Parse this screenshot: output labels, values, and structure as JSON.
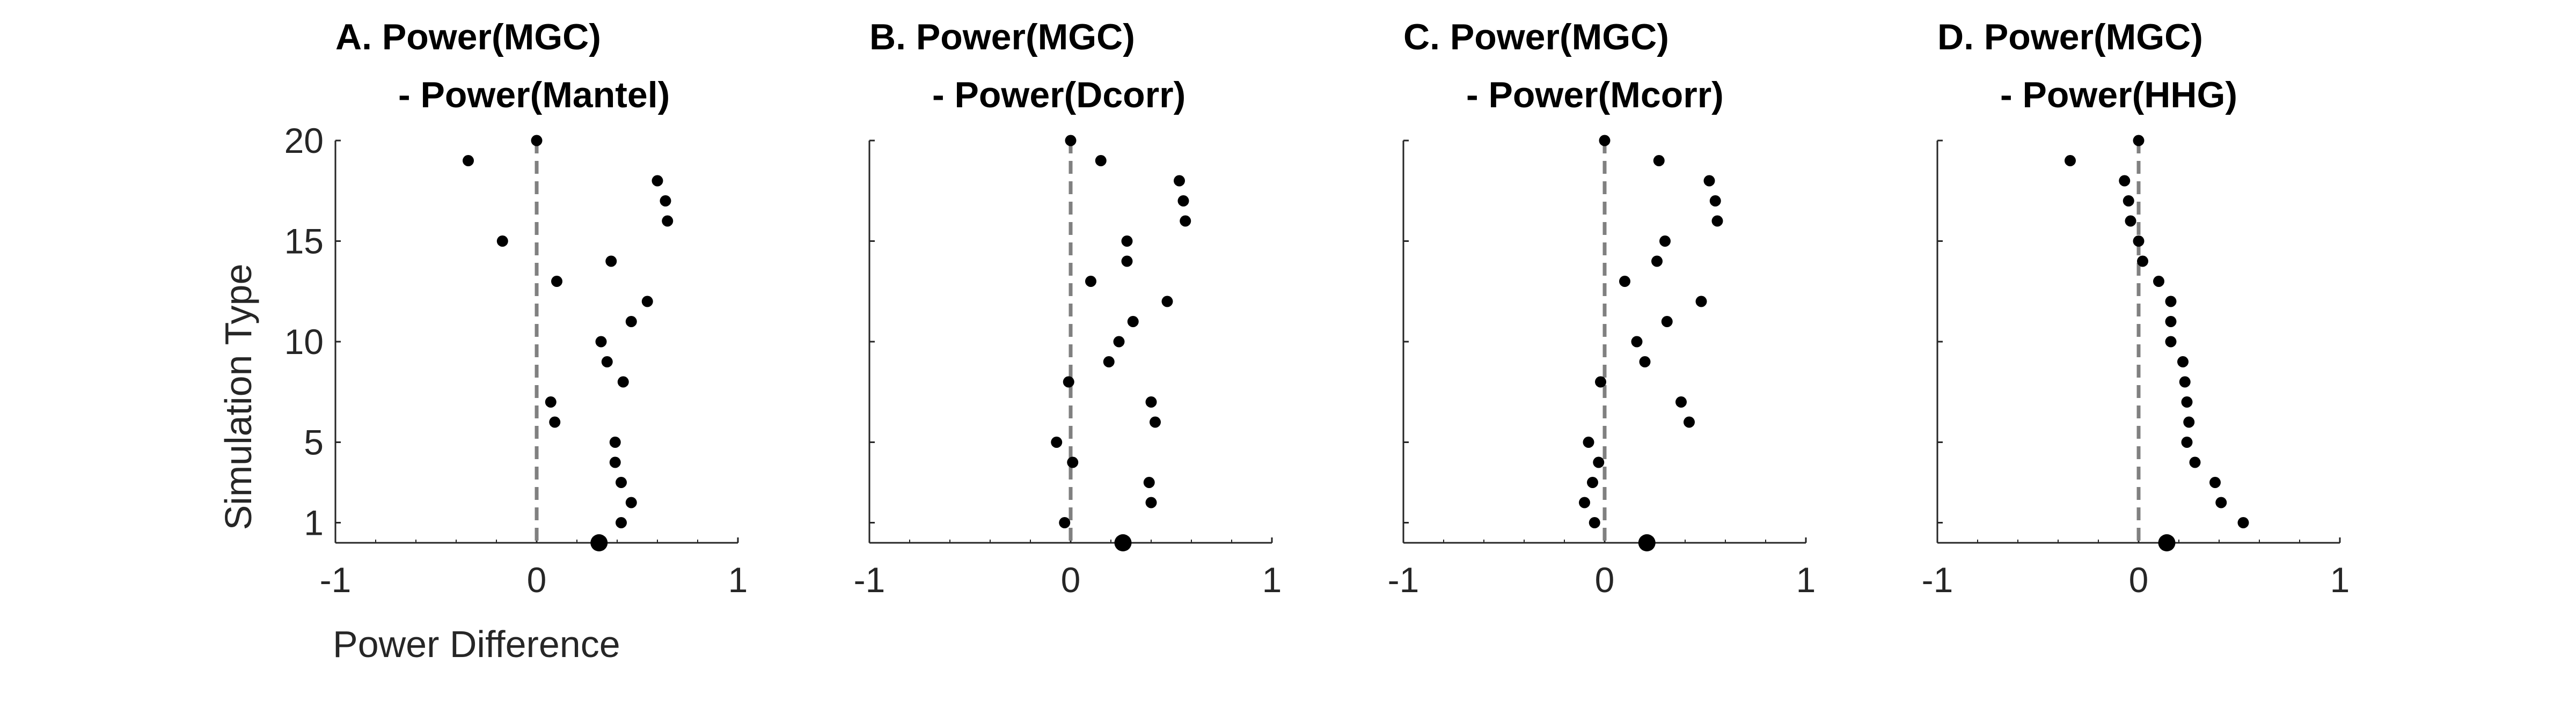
{
  "figure": {
    "ylabel": "Simulation Type",
    "xlabel": "Power Difference",
    "xticks": [
      "-1",
      "0",
      "1"
    ],
    "yticks": [
      "1",
      "5",
      "10",
      "15",
      "20"
    ]
  },
  "chart_data": [
    {
      "type": "scatter",
      "title_line1": "A. Power(MGC)",
      "title_line2": "- Power(Mantel)",
      "xlim": [
        -1,
        1
      ],
      "ylim": [
        0,
        20
      ],
      "reference_line_x": 0,
      "simulation_type": [
        1,
        2,
        3,
        4,
        5,
        6,
        7,
        8,
        9,
        10,
        11,
        12,
        13,
        14,
        15,
        16,
        17,
        18,
        19,
        20
      ],
      "power_difference": [
        0.42,
        0.47,
        0.42,
        0.39,
        0.39,
        0.09,
        0.07,
        0.43,
        0.35,
        0.32,
        0.47,
        0.55,
        0.1,
        0.37,
        -0.17,
        0.65,
        0.64,
        0.6,
        -0.34,
        0.0
      ],
      "summary_point": 0.31,
      "marker_color": "#000000",
      "reference_line_color": "#808080"
    },
    {
      "type": "scatter",
      "title_line1": "B. Power(MGC)",
      "title_line2": "- Power(Dcorr)",
      "xlim": [
        -1,
        1
      ],
      "ylim": [
        0,
        20
      ],
      "reference_line_x": 0,
      "simulation_type": [
        1,
        2,
        3,
        4,
        5,
        6,
        7,
        8,
        9,
        10,
        11,
        12,
        13,
        14,
        15,
        16,
        17,
        18,
        19,
        20
      ],
      "power_difference": [
        -0.03,
        0.4,
        0.39,
        0.01,
        -0.07,
        0.42,
        0.4,
        -0.01,
        0.19,
        0.24,
        0.31,
        0.48,
        0.1,
        0.28,
        0.28,
        0.57,
        0.56,
        0.54,
        0.15,
        0.0
      ],
      "summary_point": 0.26,
      "marker_color": "#000000",
      "reference_line_color": "#808080"
    },
    {
      "type": "scatter",
      "title_line1": "C. Power(MGC)",
      "title_line2": "- Power(Mcorr)",
      "xlim": [
        -1,
        1
      ],
      "ylim": [
        0,
        20
      ],
      "reference_line_x": 0,
      "simulation_type": [
        1,
        2,
        3,
        4,
        5,
        6,
        7,
        8,
        9,
        10,
        11,
        12,
        13,
        14,
        15,
        16,
        17,
        18,
        19,
        20
      ],
      "power_difference": [
        -0.05,
        -0.1,
        -0.06,
        -0.03,
        -0.08,
        0.42,
        0.38,
        -0.02,
        0.2,
        0.16,
        0.31,
        0.48,
        0.1,
        0.26,
        0.3,
        0.56,
        0.55,
        0.52,
        0.27,
        0.0
      ],
      "summary_point": 0.21,
      "marker_color": "#000000",
      "reference_line_color": "#808080"
    },
    {
      "type": "scatter",
      "title_line1": "D. Power(MGC)",
      "title_line2": "- Power(HHG)",
      "xlim": [
        -1,
        1
      ],
      "ylim": [
        0,
        20
      ],
      "reference_line_x": 0,
      "simulation_type": [
        1,
        2,
        3,
        4,
        5,
        6,
        7,
        8,
        9,
        10,
        11,
        12,
        13,
        14,
        15,
        16,
        17,
        18,
        19,
        20
      ],
      "power_difference": [
        0.52,
        0.41,
        0.38,
        0.28,
        0.24,
        0.25,
        0.24,
        0.23,
        0.22,
        0.16,
        0.16,
        0.16,
        0.1,
        0.02,
        0.0,
        -0.04,
        -0.05,
        -0.07,
        -0.34,
        0.0
      ],
      "summary_point": 0.14,
      "marker_color": "#000000",
      "reference_line_color": "#808080"
    }
  ]
}
